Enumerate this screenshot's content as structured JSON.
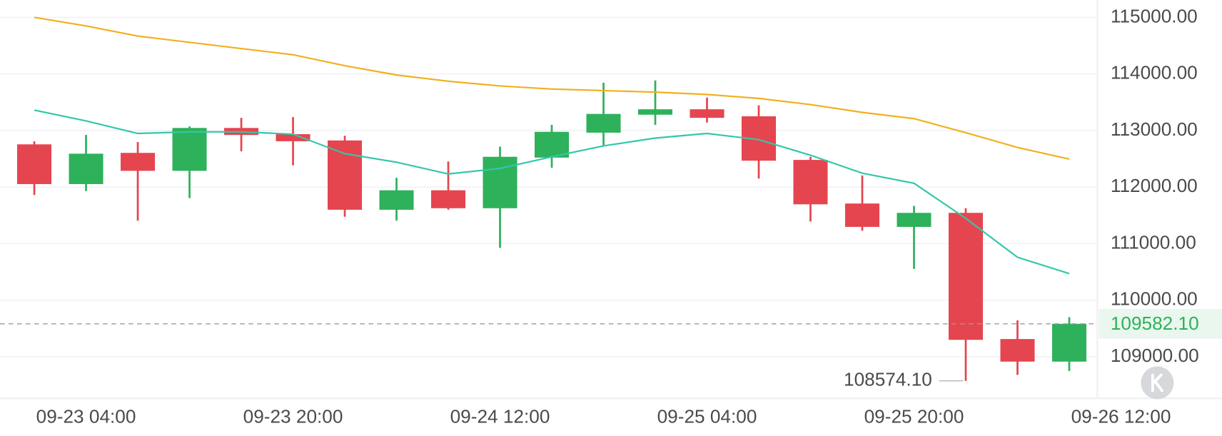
{
  "chart_data": {
    "type": "candlestick",
    "categories": [
      null,
      "09-23 04:00",
      null,
      null,
      null,
      "09-23 20:00",
      null,
      null,
      null,
      "09-24 12:00",
      null,
      null,
      null,
      "09-25 04:00",
      null,
      null,
      null,
      "09-25 20:00",
      null,
      null,
      null,
      "09-26 12:00"
    ],
    "open": [
      112755,
      112053,
      112604,
      112287,
      113045,
      112935,
      112824,
      111599,
      111943,
      111626,
      112521,
      112962,
      113279,
      113375,
      113251,
      112480,
      111709,
      111296,
      111544,
      109313,
      108914,
      null
    ],
    "high": [
      112810,
      112921,
      112797,
      113072,
      113224,
      113237,
      112907,
      112163,
      112453,
      112714,
      113100,
      113843,
      113885,
      113582,
      113444,
      112535,
      112205,
      111668,
      111626,
      109643,
      109699,
      null
    ],
    "low": [
      111860,
      111929,
      111406,
      111805,
      112632,
      112384,
      111475,
      111406,
      111599,
      110924,
      112342,
      112742,
      113100,
      113141,
      112150,
      111392,
      111227,
      110552,
      108574.1,
      108679,
      108748,
      null
    ],
    "close": [
      112053,
      112590,
      112287,
      113045,
      112921,
      112810,
      111599,
      111943,
      111626,
      112535,
      112976,
      113293,
      113375,
      113224,
      112466,
      111695,
      111296,
      111544,
      109299,
      108914,
      109582.1,
      null
    ],
    "up_color": "#2eb15b",
    "down_color": "#e5454f",
    "lines": [
      {
        "color": "#f2b01e",
        "values": [
          115000,
          114849,
          114669,
          114559,
          114449,
          114339,
          114146,
          113981,
          113871,
          113788,
          113733,
          113706,
          113678,
          113637,
          113568,
          113458,
          113320,
          113210,
          112962,
          112700,
          112494,
          null
        ]
      },
      {
        "color": "#33c7a9",
        "values": [
          113361,
          113169,
          112948,
          112976,
          112976,
          112935,
          112590,
          112439,
          112232,
          112329,
          112535,
          112728,
          112866,
          112948,
          112838,
          112563,
          112246,
          112067,
          111447,
          110759,
          110470,
          null
        ]
      }
    ],
    "ylim": [
      108278,
      115303
    ],
    "yticks": [
      {
        "value": 109000,
        "label": "109000.00"
      },
      {
        "value": 110000,
        "label": "110000.00"
      },
      {
        "value": 111000,
        "label": "111000.00"
      },
      {
        "value": 112000,
        "label": "112000.00"
      },
      {
        "value": 113000,
        "label": "113000.00"
      },
      {
        "value": 114000,
        "label": "114000.00"
      },
      {
        "value": 115000,
        "label": "115000.00"
      }
    ],
    "grid": true,
    "last_price": {
      "value": 109582.1,
      "label": "109582.10",
      "color": "#2eb15b"
    },
    "low_marker": {
      "value": 108574.1,
      "label": "108574.10"
    }
  }
}
